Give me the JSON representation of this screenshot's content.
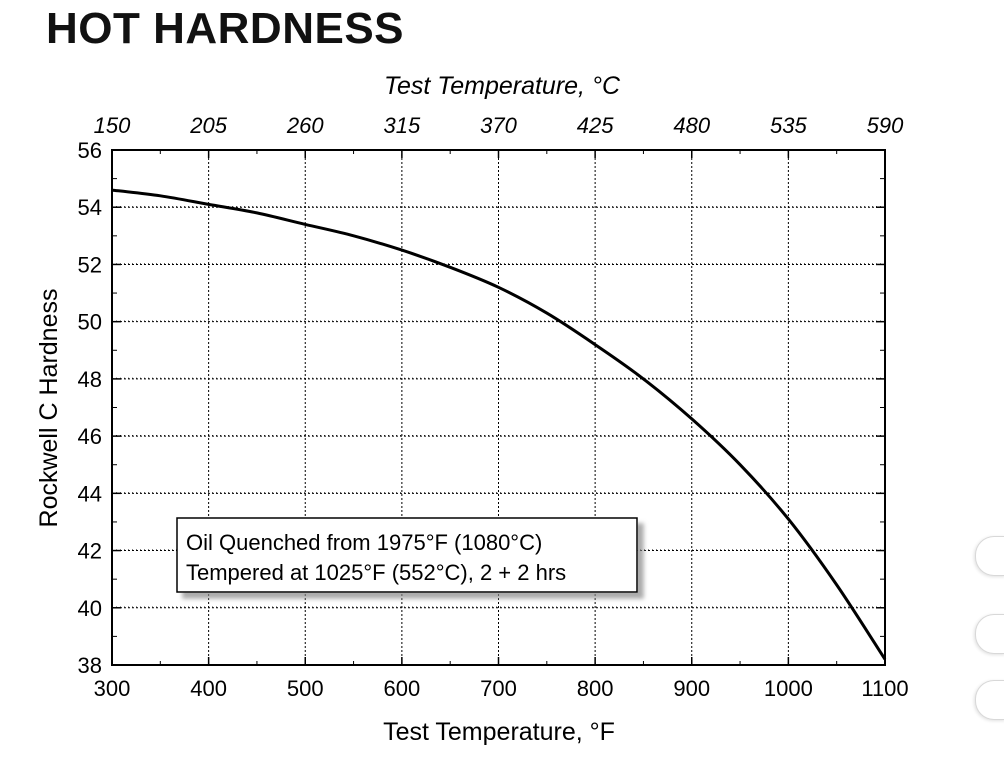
{
  "page": {
    "title": "HOT HARDNESS"
  },
  "chart_data": {
    "type": "line",
    "title": "",
    "xlabel": "Test Temperature, °F",
    "x2label": "Test Temperature, °C",
    "ylabel": "Rockwell C Hardness",
    "xlim": [
      300,
      1100
    ],
    "ylim": [
      38,
      56
    ],
    "x_ticks": [
      "300",
      "400",
      "500",
      "600",
      "700",
      "800",
      "900",
      "1000",
      "1100"
    ],
    "x2_ticks": [
      "150",
      "205",
      "260",
      "315",
      "370",
      "425",
      "480",
      "535",
      "590"
    ],
    "y_ticks": [
      "38",
      "40",
      "42",
      "44",
      "46",
      "48",
      "50",
      "52",
      "54",
      "56"
    ],
    "grid": true,
    "series": [
      {
        "x": [
          300,
          350,
          400,
          450,
          500,
          550,
          600,
          650,
          700,
          750,
          800,
          850,
          900,
          950,
          1000,
          1050,
          1100
        ],
        "y": [
          54.6,
          54.4,
          54.1,
          53.8,
          53.4,
          53.0,
          52.5,
          51.9,
          51.2,
          50.3,
          49.2,
          48.0,
          46.6,
          45.0,
          43.1,
          40.8,
          38.2
        ]
      }
    ],
    "annotation": {
      "lines": [
        "Oil Quenched from 1975°F (1080°C)",
        "Tempered at 1025°F (552°C), 2 + 2 hrs"
      ]
    }
  }
}
